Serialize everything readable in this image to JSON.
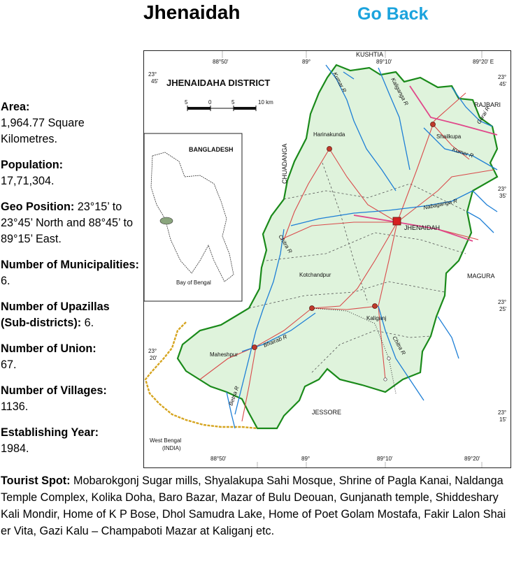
{
  "header": {
    "title": "Jhenaidah",
    "go_back_label": "Go Back"
  },
  "facts": {
    "area_label": "Area:",
    "area_value": "1,964.77 Square Kilometres.",
    "population_label": "Population:",
    "population_value": "17,71,304.",
    "geo_label": "Geo Position:",
    "geo_value": "23°15’ to 23°45’ North and 88°45’ to 89°15’ East.",
    "municipalities_label": "Number of Municipalities:",
    "municipalities_value": "6.",
    "upazillas_label": "Number of Upazillas (Sub-districts):",
    "upazillas_value": "6.",
    "union_label": "Number of Union:",
    "union_value": "67.",
    "villages_label": "Number of Villages:",
    "villages_value": "1136.",
    "year_label": "Establishing  Year:",
    "year_value": "1984."
  },
  "tourist": {
    "label": "Tourist Spot:",
    "value": "Mobarokgonj Sugar mills, Shyalakupa Sahi Mosque, Shrine of Pagla Kanai, Naldanga Temple Complex, Kolika Doha, Baro Bazar, Mazar of Bulu Deouan, Gunjanath temple, Shiddeshary Kali Mondir, Home of K P Bose, Dhol Samudra Lake, Home of Poet Golam Mostafa, Fakir Lalon Shai er Vita, Gazi Kalu – Champaboti Mazar  at Kaliganj etc."
  },
  "map": {
    "title": "JHENAIDAHA DISTRICT",
    "scale_labels": [
      "5",
      "0",
      "5",
      "10 km"
    ],
    "inset_label": "BANGLADESH",
    "inset_bay": "Bay of Bengal",
    "lon_top": [
      "88°50'",
      "89°",
      "89°10'",
      "89°20' E"
    ],
    "lon_bottom": [
      "88°50'",
      "89°",
      "89°10'",
      "89°20'"
    ],
    "lat_left": [
      {
        "deg": "23°",
        "min": "45'"
      },
      {
        "deg": "23°",
        "min": "20'"
      }
    ],
    "lat_right": [
      {
        "deg": "23°",
        "min": "45'"
      },
      {
        "deg": "23°",
        "min": "35'"
      },
      {
        "deg": "23°",
        "min": "25'"
      },
      {
        "deg": "23°",
        "min": "15'"
      }
    ],
    "neighbors": {
      "kushtia": "KUSHTIA",
      "rajbari": "RAJBARI",
      "chuadanga": "CHUADANGA",
      "magura": "MAGURA",
      "jessore": "JESSORE",
      "west_bengal": "West Bengal",
      "india": "(INDIA)"
    },
    "towns": {
      "harinakunda": "Harinakunda",
      "shailkupa": "Shailkupa",
      "jhenaidah": "JHENAIDAH",
      "kotchandpur": "Kotchandpur",
      "kaliganj": "Kaliganj",
      "maheshpur": "Maheshpur"
    },
    "rivers": {
      "kumar_north": "Kumar R",
      "kaliganga": "Kaliganga R",
      "gorai": "Gorai R",
      "kumar_east": "Kumer R",
      "nabaganga": "Nabaganga R",
      "chitra_west": "Chitra R",
      "chitra_south": "Chitra R",
      "bhairab": "Bhairab R",
      "betna": "Betna R"
    },
    "colors": {
      "district_fill": "#dff3dc",
      "district_border": "#1a8a1a",
      "river": "#1e7fd6",
      "road": "#d94b4b",
      "international_border": "#d6a520"
    }
  }
}
